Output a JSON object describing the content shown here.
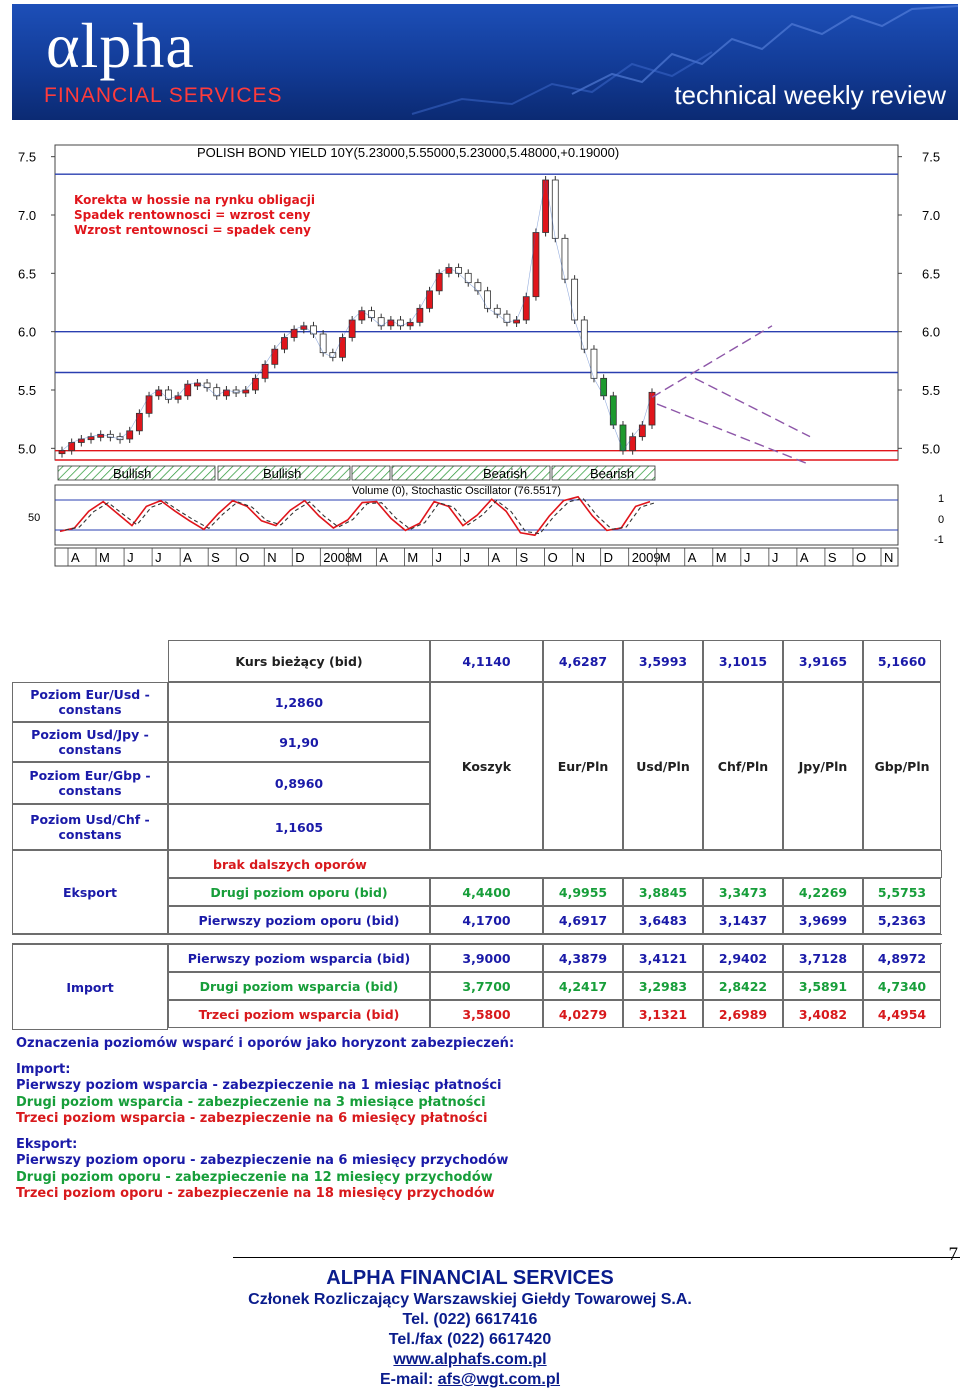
{
  "header": {
    "logo": "αlpha",
    "logo_subtitle": "FINANCIAL   SERVICES",
    "tagline": "technical weekly review"
  },
  "chart_data": {
    "type": "line",
    "title": "POLISH BOND YIELD 10Y(5.23000,5.55000,5.23000,5.48000,+0.19000)",
    "annotations": [
      "Korekta w hossie na rynku obligacji",
      "Spadek rentownosci = wzrost ceny",
      "Wzrost rentownosci = spadek ceny"
    ],
    "y_ticks": [
      "7.5",
      "7.0",
      "6.5",
      "6.0",
      "5.5",
      "5.0"
    ],
    "ylim": [
      4.9,
      7.6
    ],
    "x_ticks": [
      "A",
      "M",
      "J",
      "J",
      "A",
      "S",
      "O",
      "N",
      "D",
      "2008",
      "M",
      "A",
      "M",
      "J",
      "J",
      "A",
      "S",
      "O",
      "N",
      "D",
      "2009",
      "M",
      "A",
      "M",
      "J",
      "J",
      "A",
      "S",
      "O",
      "N"
    ],
    "horizontal_levels": [
      {
        "value": 7.35,
        "color": "#2a3fb0"
      },
      {
        "value": 6.0,
        "color": "#2a3fb0"
      },
      {
        "value": 5.65,
        "color": "#2a3fb0"
      },
      {
        "value": 4.98,
        "color": "#e0151b"
      },
      {
        "value": 4.9,
        "color": "#e0151b"
      }
    ],
    "series": [
      {
        "values": [
          4.98,
          5.05,
          5.08,
          5.1,
          5.12,
          5.1,
          5.08,
          5.15,
          5.3,
          5.45,
          5.5,
          5.42,
          5.45,
          5.55,
          5.56,
          5.52,
          5.45,
          5.5,
          5.48,
          5.5,
          5.6,
          5.72,
          5.85,
          5.95,
          6.02,
          6.05,
          5.98,
          5.82,
          5.78,
          5.95,
          6.1,
          6.18,
          6.12,
          6.05,
          6.1,
          6.05,
          6.08,
          6.2,
          6.35,
          6.5,
          6.55,
          6.5,
          6.42,
          6.35,
          6.2,
          6.15,
          6.08,
          6.1,
          6.3,
          6.85,
          7.3,
          6.8,
          6.45,
          6.1,
          5.85,
          5.6,
          5.45,
          5.2,
          4.98,
          5.1,
          5.2,
          5.48
        ]
      }
    ],
    "trend_projection": "Bearish channel",
    "indicator_bar": [
      "Bullish",
      "Bullish",
      "Bearish",
      "Bearish"
    ],
    "indicator_title": "Volume (0), Stochastic Oscillator (76.5517)",
    "indicator_left_tick": "50",
    "indicator_right_ticks": [
      "1",
      "0",
      "-1"
    ],
    "indicator_series": [
      {
        "values": [
          18,
          25,
          60,
          80,
          55,
          30,
          70,
          82,
          60,
          40,
          22,
          55,
          82,
          70,
          40,
          30,
          62,
          82,
          50,
          25,
          42,
          78,
          80,
          45,
          20,
          35,
          80,
          70,
          30,
          52,
          85,
          60,
          15,
          10,
          50,
          82,
          90,
          50,
          20,
          25,
          70,
          80
        ]
      }
    ]
  },
  "table": {
    "header_label": "Kurs bieżący (bid)",
    "current_values": [
      "4,1140",
      "4,6287",
      "3,5993",
      "3,1015",
      "3,9165",
      "5,1660"
    ],
    "currencies": [
      "Koszyk",
      "Eur/Pln",
      "Usd/Pln",
      "Chf/Pln",
      "Jpy/Pln",
      "Gbp/Pln"
    ],
    "constants": [
      {
        "label1": "Poziom Eur/Usd -",
        "label2": "constans",
        "value": "1,2860"
      },
      {
        "label1": "Poziom Usd/Jpy -",
        "label2": "constans",
        "value": "91,90"
      },
      {
        "label1": "Poziom Eur/Gbp -",
        "label2": "constans",
        "value": "0,8960"
      },
      {
        "label1": "Poziom Usd/Chf -",
        "label2": "constans",
        "value": "1,1605"
      }
    ],
    "export_label": "Eksport",
    "import_label": "Import",
    "no_resistance": "brak dalszych oporów",
    "rows": [
      {
        "label": "Drugi poziom oporu (bid)",
        "color": "green",
        "values": [
          "4,4400",
          "4,9955",
          "3,8845",
          "3,3473",
          "4,2269",
          "5,5753"
        ]
      },
      {
        "label": "Pierwszy poziom oporu (bid)",
        "color": "navy",
        "values": [
          "4,1700",
          "4,6917",
          "3,6483",
          "3,1437",
          "3,9699",
          "5,2363"
        ]
      },
      {
        "label": "Pierwszy poziom wsparcia (bid)",
        "color": "navy",
        "values": [
          "3,9000",
          "4,3879",
          "3,4121",
          "2,9402",
          "3,7128",
          "4,8972"
        ]
      },
      {
        "label": "Drugi poziom wsparcia (bid)",
        "color": "green",
        "values": [
          "3,7700",
          "4,2417",
          "3,2983",
          "2,8422",
          "3,5891",
          "4,7340"
        ]
      },
      {
        "label": "Trzeci poziom wsparcia (bid)",
        "color": "red",
        "values": [
          "3,5800",
          "4,0279",
          "3,1321",
          "2,6989",
          "3,4082",
          "4,4954"
        ]
      }
    ]
  },
  "legend": {
    "title": "Oznaczenia poziomów wsparć i oporów jako horyzont zabezpieczeń:",
    "import_title": "Import:",
    "import_lines": [
      {
        "text": "Pierwszy poziom wsparcia - zabezpieczenie na 1 miesiąc płatności",
        "color": "navy"
      },
      {
        "text": "Drugi poziom wsparcia - zabezpieczenie na 3 miesiące płatności",
        "color": "green"
      },
      {
        "text": "Trzeci poziom wsparcia - zabezpieczenie na 6 miesięcy płatności",
        "color": "red"
      }
    ],
    "export_title": "Eksport:",
    "export_lines": [
      {
        "text": "Pierwszy poziom oporu - zabezpieczenie na 6 miesięcy przychodów",
        "color": "navy"
      },
      {
        "text": "Drugi poziom oporu - zabezpieczenie na 12 miesięcy przychodów",
        "color": "green"
      },
      {
        "text": "Trzeci poziom oporu - zabezpieczenie na 18 miesięcy przychodów",
        "color": "red"
      }
    ]
  },
  "footer": {
    "page_number": "7",
    "company": "ALPHA FINANCIAL SERVICES",
    "member": "Członek Rozliczający Warszawskiej Giełdy Towarowej S.A.",
    "tel": "Tel. (022) 6617416",
    "fax": "Tel./fax (022) 6617420",
    "website": "www.alphafs.com.pl",
    "email_prefix": "E-mail: ",
    "email": "afs@wgt.com.pl"
  }
}
